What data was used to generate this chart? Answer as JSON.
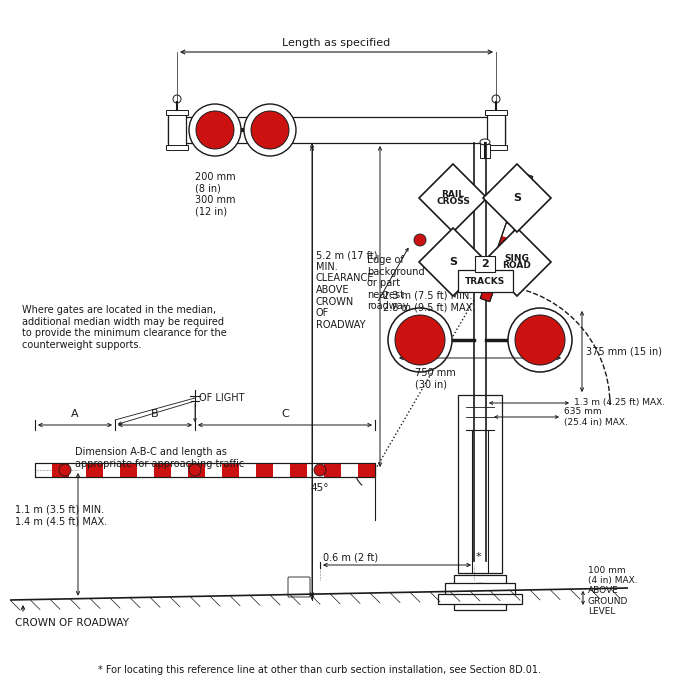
{
  "bg_color": "#ffffff",
  "line_color": "#1a1a1a",
  "red_color": "#cc1111",
  "title_bottom": "* For locating this reference line at other than curb section installation, see Section 8D.01.",
  "crown_label": "CROWN OF ROADWAY",
  "annotations": {
    "length_as_specified": "Length as specified",
    "dim_200": "200 mm\n(8 in)\n300 mm\n(12 in)",
    "clearance": "5.2 m (17 ft)\nMIN.\nCLEARANCE\nABOVE\nCROWN\nOF\nROADWAY",
    "edge_bg": "Edge of\nbackground\nor part\nnearest\nroadway",
    "median_text": "Where gates are located in the median,\nadditional median width may be required\nto provide the minimum clearance for the\ncounterweight supports.",
    "of_light": "OF LIGHT",
    "abc_dim": "Dimension A-B-C and length as\nappropriate for approaching traffic",
    "height_min_max": "2.3 m (7.5 ft) MIN.\n2.8 m (9.5 ft) MAX.",
    "vert_min_max": "1.1 m (3.5 ft) MIN.\n1.4 m (4.5 ft) MAX.",
    "horiz_06": "0.6 m (2 ft)",
    "angle_45": "45°",
    "dist_750": "750 mm\n(30 in)",
    "dist_375": "375 mm (15 in)",
    "dist_13": "1.3 m (4.25 ft) MAX.",
    "dist_635": "635 mm\n(25.4 in) MAX.",
    "ground_100": "100 mm\n(4 in) MAX.\nABOVE\nGROUND\nLEVEL"
  }
}
